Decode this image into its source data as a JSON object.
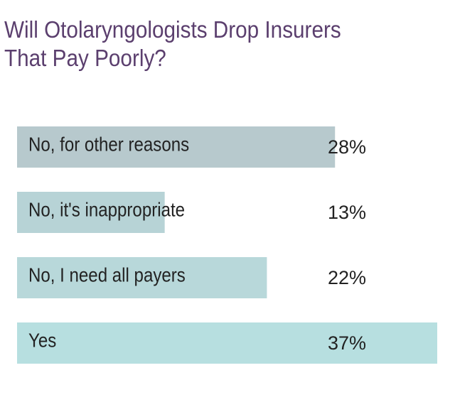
{
  "chart_data": {
    "type": "bar",
    "orientation": "horizontal",
    "title": "Will Otolaryngologists Drop Insurers That Pay Poorly?",
    "categories": [
      "No, for other reasons",
      "No, it's inappropriate",
      "No, I need all payers",
      "Yes"
    ],
    "values": [
      28,
      13,
      22,
      37
    ],
    "value_labels": [
      "28%",
      "13%",
      "22%",
      "37%"
    ],
    "colors": [
      "#b7c9cd",
      "#b7d3d6",
      "#b8d8da",
      "#b7dfe0"
    ]
  }
}
